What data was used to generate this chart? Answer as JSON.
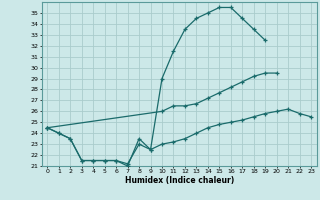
{
  "xlabel": "Humidex (Indice chaleur)",
  "bg_color": "#cce8e8",
  "grid_color": "#aacccc",
  "line_color": "#1a6b6b",
  "xlim": [
    -0.5,
    23.5
  ],
  "ylim": [
    21,
    36
  ],
  "xticks": [
    0,
    1,
    2,
    3,
    4,
    5,
    6,
    7,
    8,
    9,
    10,
    11,
    12,
    13,
    14,
    15,
    16,
    17,
    18,
    19,
    20,
    21,
    22,
    23
  ],
  "yticks": [
    21,
    22,
    23,
    24,
    25,
    26,
    27,
    28,
    29,
    30,
    31,
    32,
    33,
    34,
    35
  ],
  "line1_x": [
    0,
    1,
    2,
    3,
    4,
    5,
    6,
    7,
    8,
    9,
    10,
    11,
    12,
    13,
    14,
    15,
    16,
    17,
    18,
    19
  ],
  "line1_y": [
    24.5,
    24.0,
    23.5,
    21.5,
    21.5,
    21.5,
    21.5,
    21.0,
    23.5,
    22.5,
    29.0,
    31.5,
    33.5,
    34.5,
    35.0,
    35.5,
    35.5,
    34.5,
    33.5,
    32.5
  ],
  "line2_x": [
    0,
    10,
    11,
    12,
    13,
    14,
    15,
    16,
    17,
    18,
    19,
    20
  ],
  "line2_y": [
    24.5,
    26.0,
    26.5,
    26.5,
    26.7,
    27.2,
    27.7,
    28.2,
    28.7,
    29.2,
    29.5,
    29.5
  ],
  "line3_x": [
    0,
    1,
    2,
    3,
    4,
    5,
    6,
    7,
    8,
    9,
    10,
    11,
    12,
    13,
    14,
    15,
    16,
    17,
    18,
    19,
    20,
    21,
    22,
    23
  ],
  "line3_y": [
    24.5,
    24.0,
    23.5,
    21.5,
    21.5,
    21.5,
    21.5,
    21.2,
    23.0,
    22.5,
    23.0,
    23.2,
    23.5,
    24.0,
    24.5,
    24.8,
    25.0,
    25.2,
    25.5,
    25.8,
    26.0,
    26.2,
    25.8,
    25.5
  ]
}
